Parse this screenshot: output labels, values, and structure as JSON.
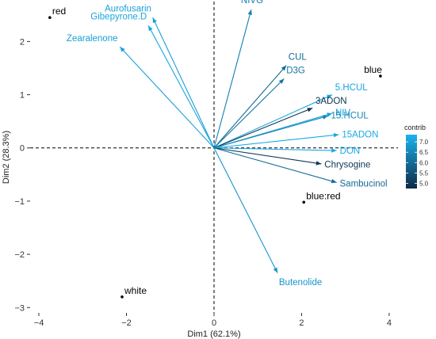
{
  "chart_data": {
    "type": "biplot",
    "xlabel": "Dim1 (62.1%)",
    "ylabel": "Dim2 (28.3%)",
    "xlim": [
      -4.2,
      4.2
    ],
    "ylim": [
      -3.1,
      2.75
    ],
    "x_ticks": [
      -4,
      -2,
      0,
      2,
      4
    ],
    "y_ticks": [
      -3,
      -2,
      -1,
      0,
      1,
      2
    ],
    "x_tick_labels": [
      "−4",
      "−2",
      "0",
      "2",
      "4"
    ],
    "y_tick_labels": [
      "−3",
      "−2",
      "−1",
      "0",
      "1",
      "2"
    ],
    "grid": false,
    "variables": [
      {
        "name": "Aurofusarin",
        "x": -1.4,
        "y": 2.45,
        "contrib": 7.0
      },
      {
        "name": "Gibepyrone.D",
        "x": -1.5,
        "y": 2.3,
        "contrib": 7.1
      },
      {
        "name": "Zearalenone",
        "x": -2.15,
        "y": 1.9,
        "contrib": 7.0
      },
      {
        "name": "NIVG",
        "x": 0.85,
        "y": 2.6,
        "contrib": 6.4
      },
      {
        "name": "CUL",
        "x": 1.65,
        "y": 1.55,
        "contrib": 6.0
      },
      {
        "name": "D3G",
        "x": 1.6,
        "y": 1.3,
        "contrib": 6.2
      },
      {
        "name": "5.HCUL",
        "x": 2.7,
        "y": 1.0,
        "contrib": 7.1
      },
      {
        "name": "3ADON",
        "x": 2.25,
        "y": 0.75,
        "contrib": 4.9
      },
      {
        "name": "NIV",
        "x": 2.7,
        "y": 0.65,
        "contrib": 7.0
      },
      {
        "name": "15.HCUL",
        "x": 2.6,
        "y": 0.6,
        "contrib": 6.5
      },
      {
        "name": "15ADON",
        "x": 2.85,
        "y": 0.25,
        "contrib": 7.2
      },
      {
        "name": "DON",
        "x": 2.8,
        "y": -0.05,
        "contrib": 7.2
      },
      {
        "name": "Chrysogine",
        "x": 2.45,
        "y": -0.3,
        "contrib": 5.0
      },
      {
        "name": "Sambucinol",
        "x": 2.8,
        "y": -0.65,
        "contrib": 6.0
      },
      {
        "name": "Butenolide",
        "x": 1.45,
        "y": -2.35,
        "contrib": 6.8
      }
    ],
    "individuals": [
      {
        "name": "red",
        "x": -3.75,
        "y": 2.45
      },
      {
        "name": "blue",
        "x": 3.8,
        "y": 1.35
      },
      {
        "name": "blue:red",
        "x": 2.05,
        "y": -1.02
      },
      {
        "name": "white",
        "x": -2.1,
        "y": -2.8
      }
    ],
    "legend": {
      "title": "contrib",
      "position": "right",
      "min": 4.75,
      "max": 7.35,
      "ticks": [
        5.0,
        5.5,
        6.0,
        6.5,
        7.0
      ],
      "tick_labels": [
        "5.0",
        "5.5",
        "6.0",
        "6.5",
        "7.0"
      ],
      "color_low": "#0d2a45",
      "color_high": "#1ab2ee"
    },
    "colors": {
      "reference_line": "#000000",
      "individual_point": "#000000"
    }
  }
}
